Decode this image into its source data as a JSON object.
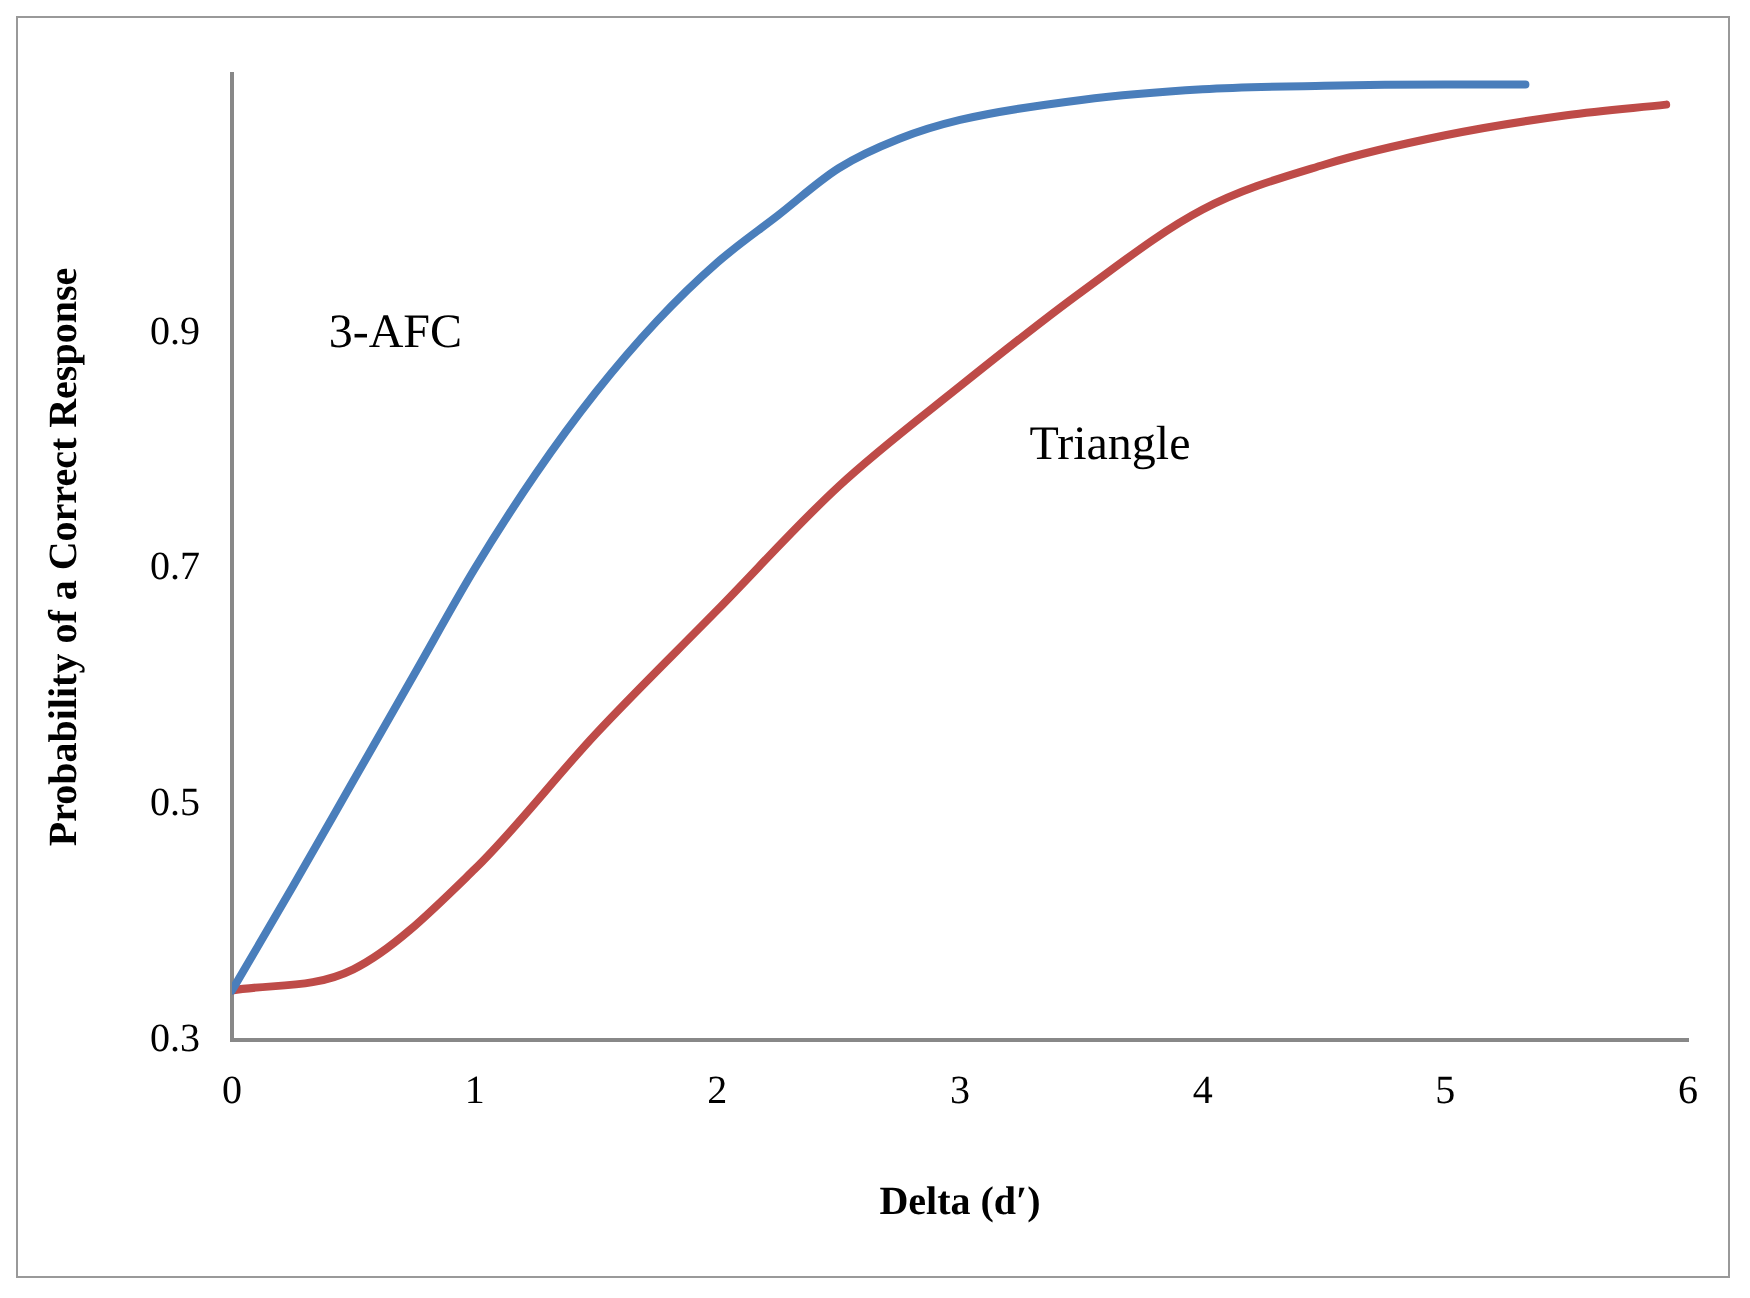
{
  "chart_data": {
    "type": "line",
    "xlabel": "Delta (d′)",
    "ylabel": "Probability of a Correct Response",
    "xlim": [
      0,
      6
    ],
    "xticks": [
      0,
      1,
      2,
      3,
      4,
      5,
      6
    ],
    "ylim": [
      0.3,
      1.12
    ],
    "yticks": [
      0.3,
      0.5,
      0.7,
      0.9
    ],
    "grid": false,
    "legend": false,
    "marker": "none",
    "line_style": "solid",
    "series": [
      {
        "name": "3-AFC",
        "color": "#4a7ebb",
        "x": [
          0,
          0.25,
          0.5,
          0.75,
          1,
          1.25,
          1.5,
          1.75,
          2,
          2.25,
          2.5,
          2.75,
          3,
          3.5,
          4,
          4.5,
          5,
          5.33
        ],
        "values": [
          0.342,
          0.43,
          0.52,
          0.61,
          0.7,
          0.78,
          0.85,
          0.91,
          0.96,
          1.0,
          1.04,
          1.065,
          1.081,
          1.098,
          1.107,
          1.11,
          1.111,
          1.111
        ]
      },
      {
        "name": "Triangle",
        "color": "#be4b48",
        "x": [
          0,
          0.5,
          1,
          1.5,
          2,
          2.5,
          3,
          3.5,
          4,
          4.5,
          5,
          5.5,
          5.91
        ],
        "values": [
          0.342,
          0.36,
          0.445,
          0.56,
          0.665,
          0.77,
          0.855,
          0.935,
          1.005,
          1.043,
          1.068,
          1.085,
          1.094
        ]
      }
    ]
  }
}
